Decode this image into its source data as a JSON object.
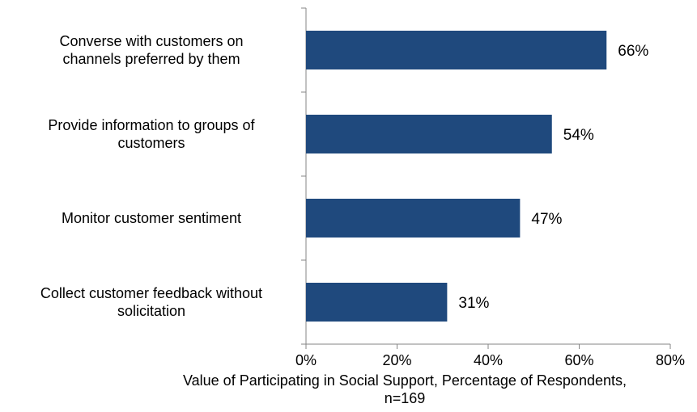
{
  "chart_data": {
    "type": "bar",
    "orientation": "horizontal",
    "categories": [
      [
        "Converse with customers on",
        "channels preferred by them"
      ],
      [
        "Provide information to groups of",
        "customers"
      ],
      [
        "Monitor customer sentiment"
      ],
      [
        "Collect customer feedback without",
        "solicitation"
      ]
    ],
    "values": [
      66,
      54,
      47,
      31
    ],
    "data_labels": [
      "66%",
      "54%",
      "47%",
      "31%"
    ],
    "xlabel_lines": [
      "Value of Participating in Social Support, Percentage of Respondents,",
      "n=169"
    ],
    "xlim": [
      0,
      80
    ],
    "xticks": [
      0,
      20,
      40,
      60,
      80
    ],
    "xtick_labels": [
      "0%",
      "20%",
      "40%",
      "60%",
      "80%"
    ],
    "bar_color": "#1F497D",
    "axis_color": "#868686",
    "grid": false,
    "legend": "none"
  }
}
